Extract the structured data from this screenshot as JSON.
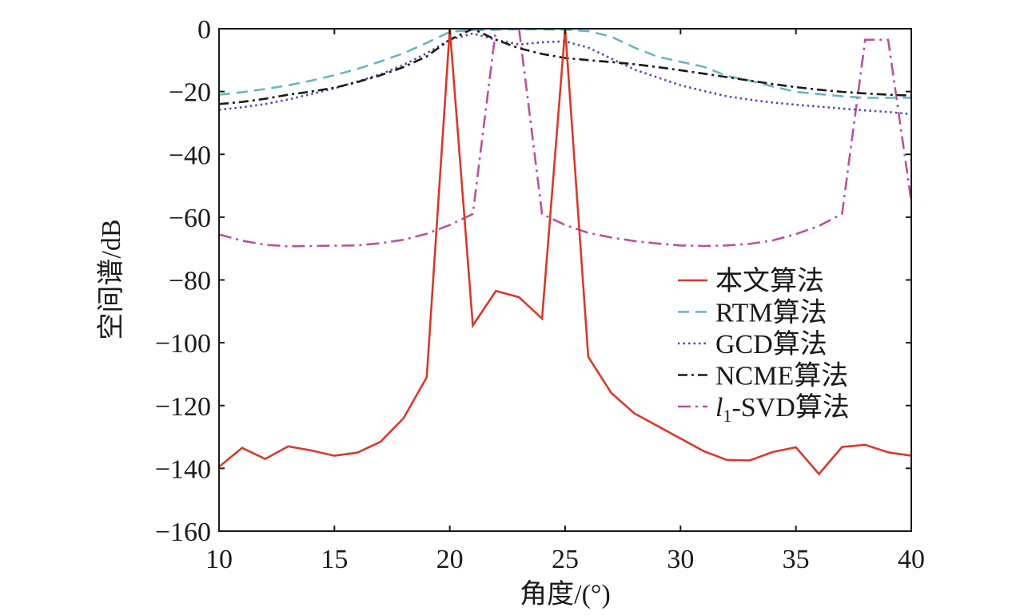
{
  "chart_data": {
    "type": "line",
    "title": "",
    "xlabel": "角度/(°)",
    "ylabel": "空间谱/dB",
    "xlim": [
      10,
      40
    ],
    "ylim": [
      -160,
      0
    ],
    "xticks": [
      10,
      15,
      20,
      25,
      30,
      35,
      40
    ],
    "xtick_labels": [
      "10",
      "15",
      "20",
      "25",
      "30",
      "35",
      "40"
    ],
    "yticks": [
      0,
      -20,
      -40,
      -60,
      -80,
      -100,
      -120,
      -140,
      -160
    ],
    "ytick_labels": [
      "0",
      "−20",
      "−40",
      "−60",
      "−80",
      "−100",
      "−120",
      "−140",
      "−160"
    ],
    "grid": false,
    "legend_position": "center-right",
    "series": [
      {
        "name": "本文算法",
        "label_parts": [
          "本文算法"
        ],
        "color": "#d63a2a",
        "dash": "solid",
        "x": [
          10,
          11,
          12,
          13,
          14,
          15,
          16,
          17,
          18,
          19,
          20,
          21,
          22,
          23,
          24,
          25,
          26,
          27,
          28,
          29,
          30,
          31,
          32,
          33,
          34,
          35,
          36,
          37,
          38,
          39,
          40
        ],
        "y": [
          -139.5,
          -133.5,
          -137,
          -133,
          -134.3,
          -136,
          -135,
          -131.5,
          -124,
          -111,
          0,
          -94.5,
          -83.5,
          -85.5,
          -92.3,
          0,
          -104.5,
          -116,
          -122.5,
          -126.5,
          -130.5,
          -134.5,
          -137.3,
          -137.5,
          -134.8,
          -133.3,
          -141.8,
          -133.2,
          -132.5,
          -134.9,
          -136
        ]
      },
      {
        "name": "RTM算法",
        "label_parts": [
          "RTM算法"
        ],
        "color": "#6ab5bd",
        "dash": "dashed",
        "x": [
          10,
          11,
          12,
          13,
          14,
          15,
          16,
          17,
          18,
          19,
          20,
          21,
          22,
          23,
          24,
          25,
          26,
          27,
          28,
          29,
          30,
          31,
          32,
          33,
          34,
          35,
          36,
          37,
          38,
          39,
          40
        ],
        "y": [
          -21,
          -20.2,
          -19.2,
          -18,
          -16.5,
          -14.8,
          -12.8,
          -10.4,
          -7.8,
          -4.5,
          -1,
          -0.4,
          -0.3,
          -0.2,
          -0.2,
          -0.3,
          -0.8,
          -2.5,
          -6,
          -8.9,
          -10.5,
          -12.1,
          -15,
          -16.5,
          -18.4,
          -20.1,
          -20.8,
          -21.5,
          -22,
          -22,
          -22
        ]
      },
      {
        "name": "GCD算法",
        "label_parts": [
          "GCD算法"
        ],
        "color": "#4d4da6",
        "dash": "dotted",
        "x": [
          10,
          11,
          12,
          13,
          14,
          15,
          16,
          17,
          18,
          19,
          20,
          21,
          22,
          23,
          24,
          25,
          26,
          27,
          28,
          29,
          30,
          31,
          32,
          33,
          34,
          35,
          36,
          37,
          38,
          39,
          40
        ],
        "y": [
          -25.8,
          -25,
          -24,
          -22.5,
          -20.8,
          -19,
          -16.8,
          -14.5,
          -11.5,
          -7.8,
          -3.5,
          -1.5,
          -3.5,
          -5,
          -4.3,
          -4,
          -6,
          -9.5,
          -13,
          -15.5,
          -18,
          -19.8,
          -21.5,
          -22.6,
          -23.5,
          -24.2,
          -24.8,
          -25.4,
          -26,
          -26.5,
          -27.2
        ]
      },
      {
        "name": "NCME算法",
        "label_parts": [
          "NCME算法"
        ],
        "color": "#1a1a1a",
        "dash": "dashdot",
        "x": [
          10,
          11,
          12,
          13,
          14,
          15,
          16,
          17,
          18,
          19,
          20,
          21,
          22,
          23,
          24,
          25,
          26,
          27,
          28,
          29,
          30,
          31,
          32,
          33,
          34,
          35,
          36,
          37,
          38,
          39,
          40
        ],
        "y": [
          -24,
          -23.3,
          -22.3,
          -21,
          -20,
          -18.8,
          -17,
          -14.8,
          -12.2,
          -8.8,
          -3.5,
          0,
          -3.5,
          -6.2,
          -8,
          -9.3,
          -10,
          -10.6,
          -11.3,
          -12.2,
          -13.2,
          -14.3,
          -15.4,
          -16.5,
          -17.6,
          -18.6,
          -19.4,
          -20.1,
          -20.6,
          -21,
          -21.3
        ]
      },
      {
        "name": "l1-SVD算法",
        "label_parts": [
          "l",
          "1",
          "-SVD算法"
        ],
        "color": "#b8529b",
        "dash": "dashdotlong",
        "x": [
          10,
          11,
          12,
          13,
          14,
          15,
          16,
          17,
          18,
          19,
          20,
          21,
          22,
          23,
          24,
          25,
          26,
          27,
          28,
          29,
          30,
          31,
          32,
          33,
          34,
          35,
          36,
          37,
          38,
          39,
          40
        ],
        "y": [
          -65.5,
          -67.5,
          -68.8,
          -69.3,
          -69.2,
          -69.1,
          -69,
          -68.3,
          -67.2,
          -65.3,
          -62.5,
          -59,
          0,
          0,
          -59,
          -62.5,
          -65,
          -66.5,
          -67.6,
          -68.4,
          -69,
          -69.2,
          -69,
          -68.5,
          -67.4,
          -65.4,
          -62.8,
          -59,
          -3.5,
          -3.5,
          -55
        ]
      }
    ]
  }
}
